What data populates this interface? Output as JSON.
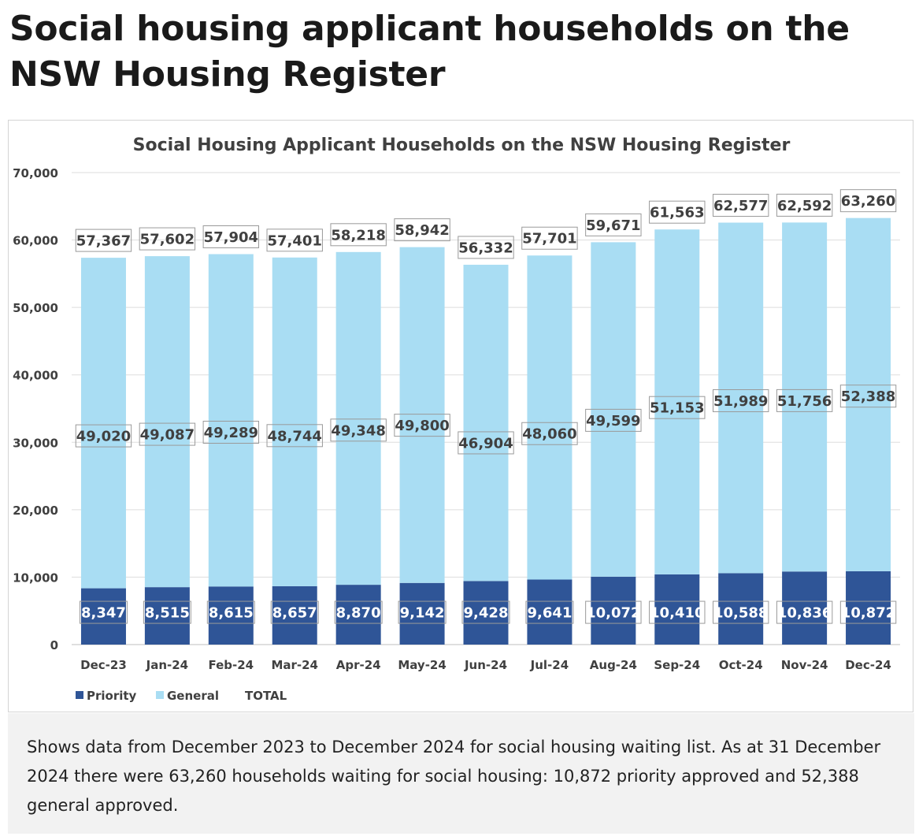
{
  "page": {
    "title": "Social housing applicant households on the NSW Housing Register",
    "caption": "Shows data from December 2023 to December 2024 for social housing waiting list. As at 31 December 2024 there were 63,260 households waiting for social housing: 10,872 priority approved and 52,388 general approved."
  },
  "colors": {
    "priority": "#2f5597",
    "general": "#a9ddf3",
    "gridline": "#dddddd",
    "text": "#404040"
  },
  "chart_data": {
    "type": "bar",
    "stacked": true,
    "title": "Social Housing Applicant Households on the NSW Housing Register",
    "xlabel": "",
    "ylabel": "",
    "ylim": [
      0,
      70000
    ],
    "yticks": [
      0,
      10000,
      20000,
      30000,
      40000,
      50000,
      60000,
      70000
    ],
    "ytick_labels": [
      "0",
      "10,000",
      "20,000",
      "30,000",
      "40,000",
      "50,000",
      "60,000",
      "70,000"
    ],
    "grid": true,
    "legend_position": "bottom-left",
    "categories": [
      "Dec-23",
      "Jan-24",
      "Feb-24",
      "Mar-24",
      "Apr-24",
      "May-24",
      "Jun-24",
      "Jul-24",
      "Aug-24",
      "Sep-24",
      "Oct-24",
      "Nov-24",
      "Dec-24"
    ],
    "series": [
      {
        "name": "Priority",
        "values": [
          8347,
          8515,
          8615,
          8657,
          8870,
          9142,
          9428,
          9641,
          10072,
          10410,
          10588,
          10836,
          10872
        ]
      },
      {
        "name": "General",
        "values": [
          49020,
          49087,
          49289,
          48744,
          49348,
          49800,
          46904,
          48060,
          49599,
          51153,
          51989,
          51756,
          52388
        ]
      }
    ],
    "totals_series_name": "TOTAL",
    "totals": [
      57367,
      57602,
      57904,
      57401,
      58218,
      58942,
      56332,
      57701,
      59671,
      61563,
      62577,
      62592,
      63260
    ],
    "priority_labels": [
      "8,347",
      "8,515",
      "8,615",
      "8,657",
      "8,870",
      "9,142",
      "9,428",
      "9,641",
      "10,072",
      "10,410",
      "10,588",
      "10,836",
      "10,872"
    ],
    "general_labels": [
      "49,020",
      "49,087",
      "49,289",
      "48,744",
      "49,348",
      "49,800",
      "46,904",
      "48,060",
      "49,599",
      "51,153",
      "51,989",
      "51,756",
      "52,388"
    ],
    "total_labels": [
      "57,367",
      "57,602",
      "57,904",
      "57,401",
      "58,218",
      "58,942",
      "56,332",
      "57,701",
      "59,671",
      "61,563",
      "62,577",
      "62,592",
      "63,260"
    ]
  }
}
